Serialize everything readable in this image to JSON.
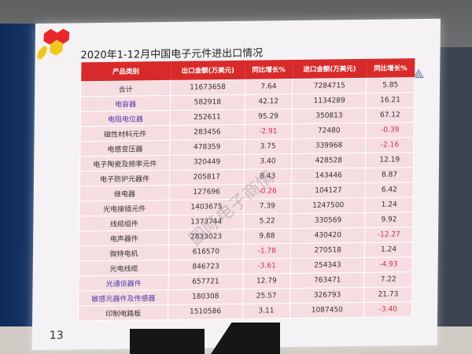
{
  "slide": {
    "title": "2020年1-12月中国电子元件进出口情况",
    "page_number": "13",
    "watermark": "国际电子商情",
    "headers": [
      "产品类别",
      "出口金额(万美元)",
      "同比增长%",
      "进口金额(万美元)",
      "同比增长%"
    ],
    "rows": [
      {
        "name": "合计",
        "export": "11673658",
        "export_yoy": "7.64",
        "import": "7284715",
        "import_yoy": "5.85",
        "highlight": false
      },
      {
        "name": "电容器",
        "export": "582918",
        "export_yoy": "42.12",
        "import": "1134289",
        "import_yoy": "16.21",
        "highlight": true
      },
      {
        "name": "电阻电位器",
        "export": "252611",
        "export_yoy": "95.29",
        "import": "350813",
        "import_yoy": "67.12",
        "highlight": true
      },
      {
        "name": "磁性材料元件",
        "export": "283456",
        "export_yoy": "-2.91",
        "import": "72480",
        "import_yoy": "-0.39",
        "highlight": false
      },
      {
        "name": "电感变压器",
        "export": "478359",
        "export_yoy": "3.75",
        "import": "339968",
        "import_yoy": "-2.16",
        "highlight": false
      },
      {
        "name": "电子陶瓷及频率元件",
        "export": "320449",
        "export_yoy": "3.40",
        "import": "428528",
        "import_yoy": "12.19",
        "highlight": false
      },
      {
        "name": "电子防护元器件",
        "export": "205817",
        "export_yoy": "8.43",
        "import": "143446",
        "import_yoy": "8.87",
        "highlight": false
      },
      {
        "name": "继电器",
        "export": "127696",
        "export_yoy": "-0.26",
        "import": "104127",
        "import_yoy": "6.42",
        "highlight": false
      },
      {
        "name": "光电接插元件",
        "export": "1403675",
        "export_yoy": "7.39",
        "import": "1247500",
        "import_yoy": "1.24",
        "highlight": false
      },
      {
        "name": "线缆组件",
        "export": "1373744",
        "export_yoy": "5.22",
        "import": "330569",
        "import_yoy": "9.92",
        "highlight": false
      },
      {
        "name": "电声器件",
        "export": "2833023",
        "export_yoy": "9.88",
        "import": "430420",
        "import_yoy": "-12.27",
        "highlight": false
      },
      {
        "name": "微特电机",
        "export": "616570",
        "export_yoy": "-1.78",
        "import": "270518",
        "import_yoy": "1.24",
        "highlight": false
      },
      {
        "name": "光电线缆",
        "export": "846723",
        "export_yoy": "-3.61",
        "import": "254343",
        "import_yoy": "-4.93",
        "highlight": false
      },
      {
        "name": "光通信器件",
        "export": "657721",
        "export_yoy": "12.79",
        "import": "763471",
        "import_yoy": "7.22",
        "highlight": true
      },
      {
        "name": "敏感元器件及传感器",
        "export": "180308",
        "export_yoy": "25.57",
        "import": "326793",
        "import_yoy": "21.73",
        "highlight": true
      },
      {
        "name": "印制电路板",
        "export": "1510586",
        "export_yoy": "3.11",
        "import": "1087450",
        "import_yoy": "-3.40",
        "highlight": false
      }
    ],
    "colors": {
      "header": "#d82a2a",
      "row": "#f6dde2",
      "negative": "#d0304a",
      "highlight_text": "#4b3aa8"
    }
  }
}
